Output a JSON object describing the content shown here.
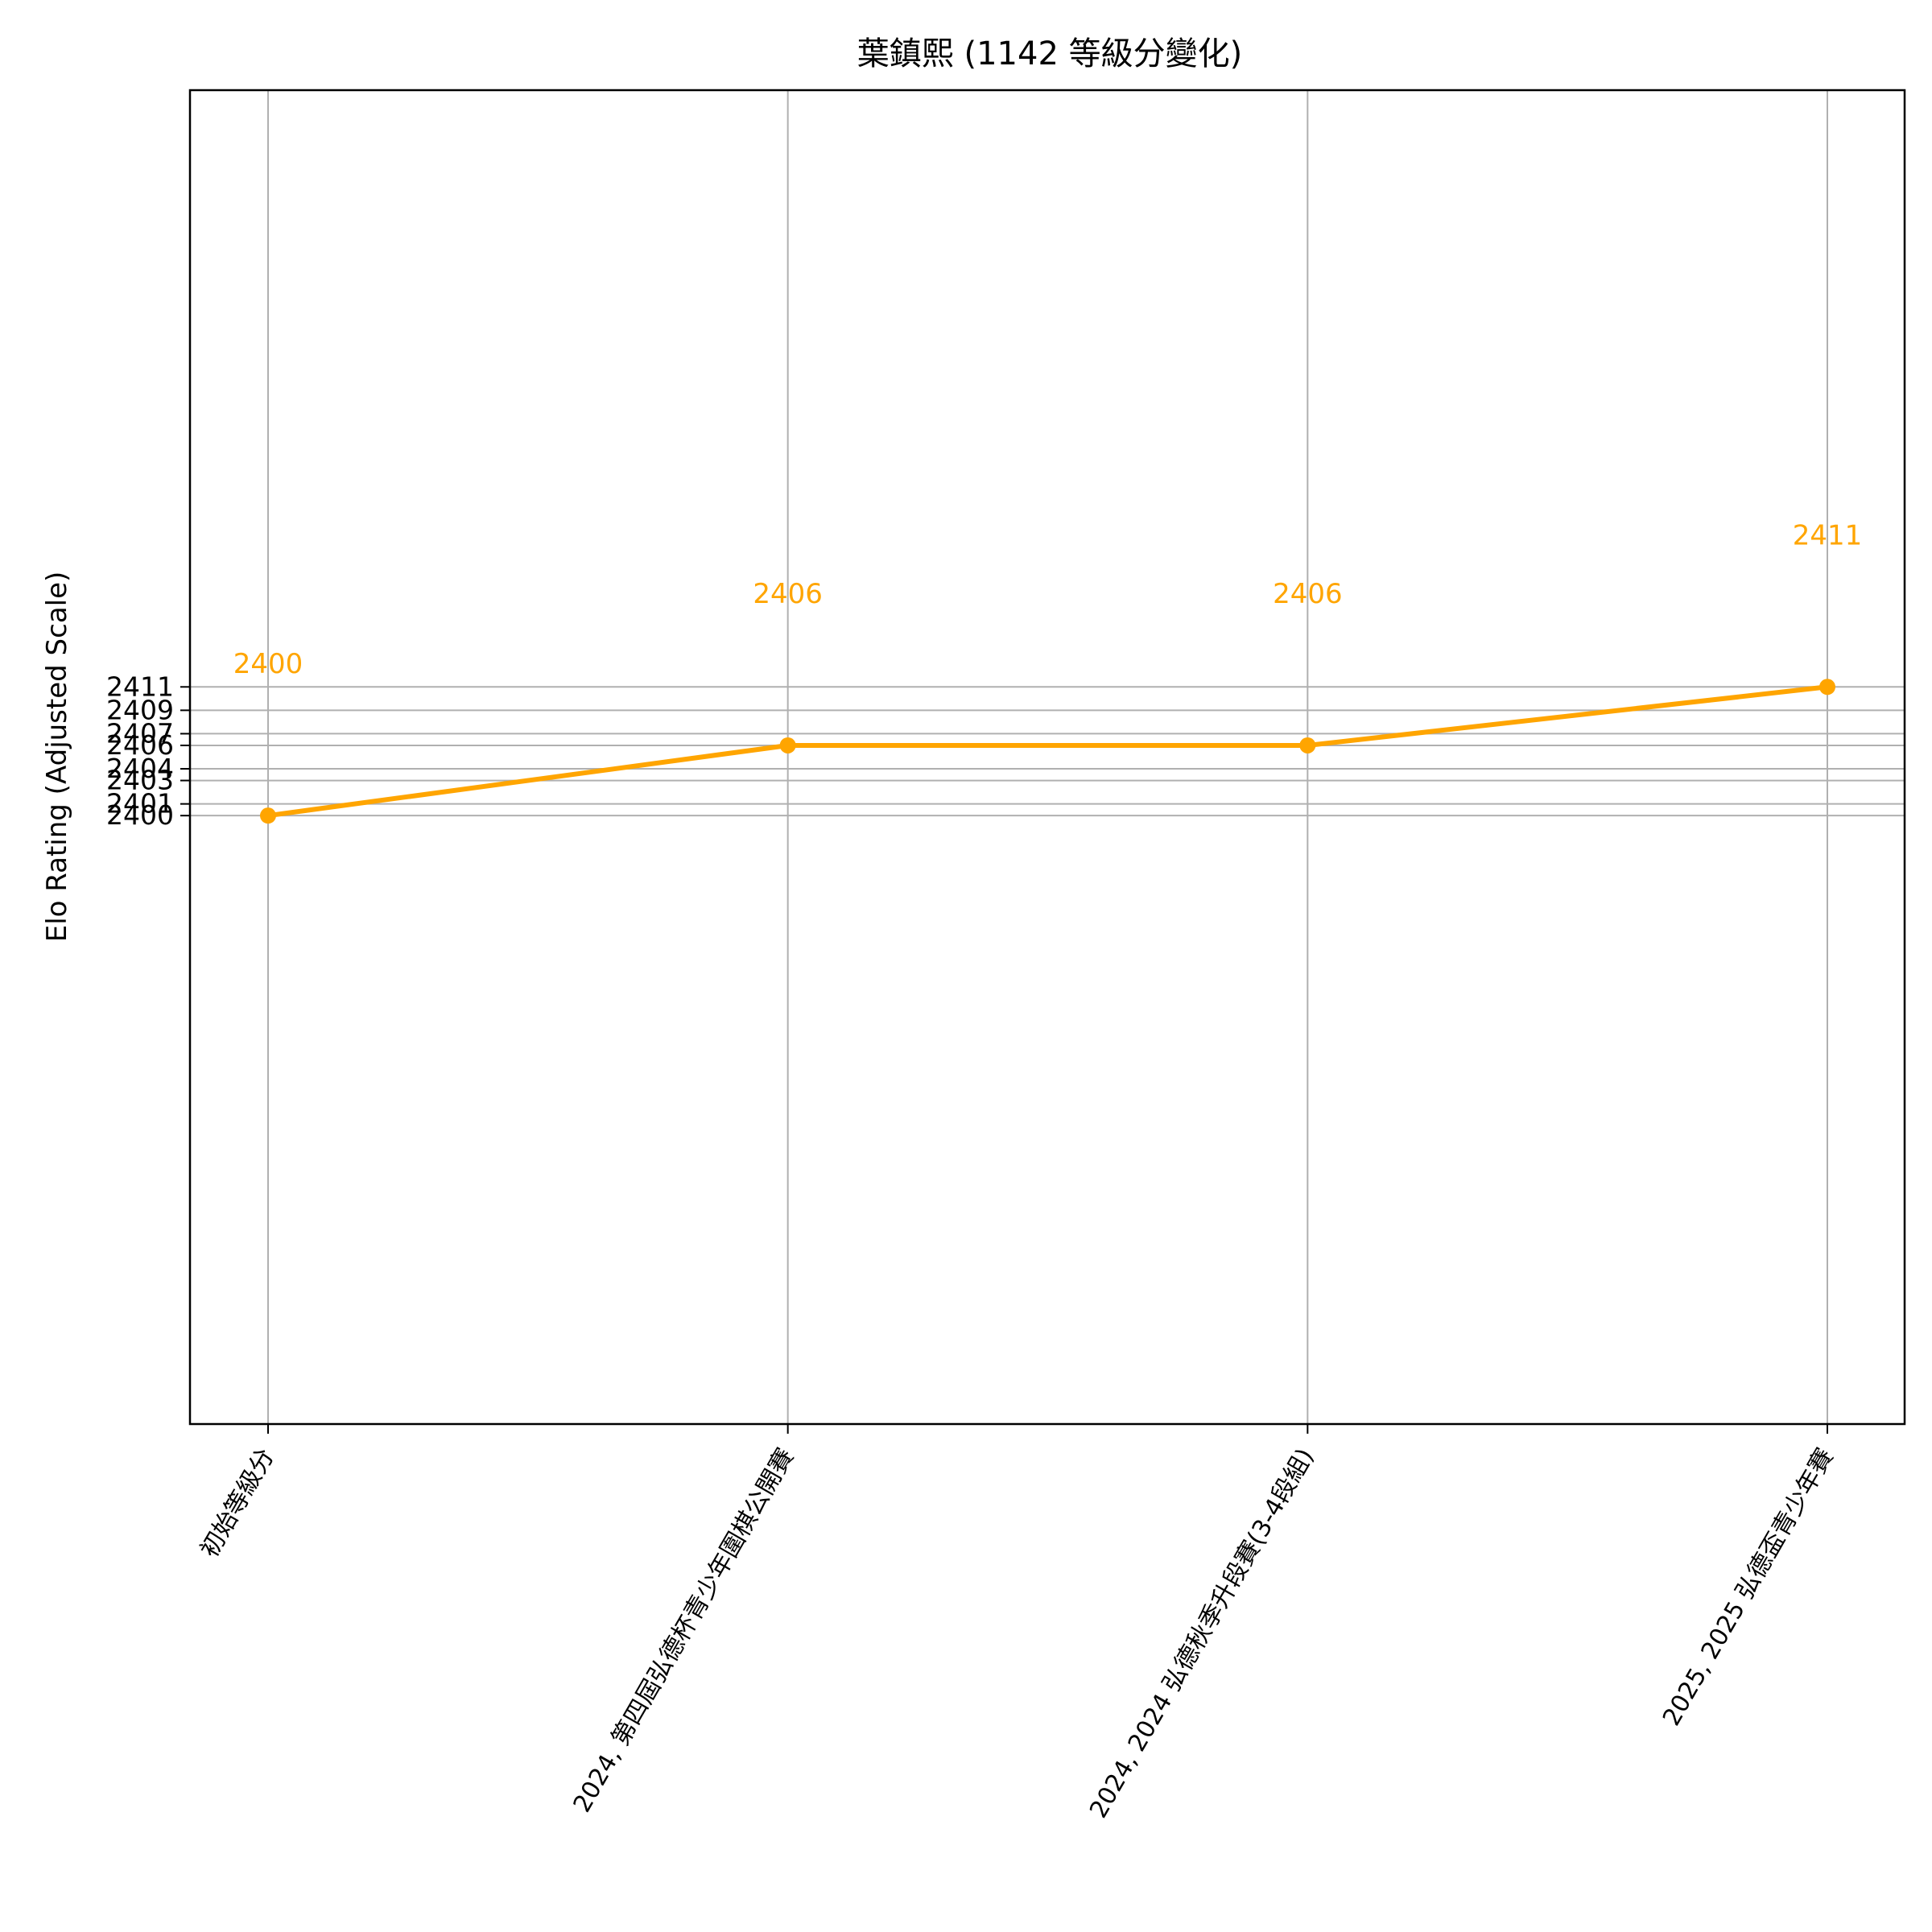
{
  "chart_data": {
    "type": "line",
    "title": "葉鎮熙 (1142 等級分變化)",
    "xlabel": "",
    "ylabel": "Elo Rating (Adjusted Scale)",
    "categories": [
      "初始等級分",
      "2024, 第四屆弘德杯青少年圍棋公開賽",
      "2024, 2024 弘德秋季升段賽(3-4段組)",
      "2025, 2025 弘德盃青少年賽"
    ],
    "series": [
      {
        "values": [
          2400,
          2406,
          2406,
          2411
        ],
        "color": "#FFA500"
      }
    ],
    "data_labels": [
      "2400",
      "2406",
      "2406",
      "2411"
    ],
    "yticks": [
      2400,
      2401,
      2403,
      2404,
      2406,
      2407,
      2409,
      2411
    ],
    "ytick_labels": [
      "2400",
      "2401",
      "2403",
      "2404",
      "2406",
      "2407",
      "2409",
      "2411"
    ],
    "ylim": [
      2348,
      2462
    ],
    "grid": true,
    "grid_color": "#b0b0b0",
    "x_tick_rotation": 60,
    "data_label_offset": 13
  }
}
